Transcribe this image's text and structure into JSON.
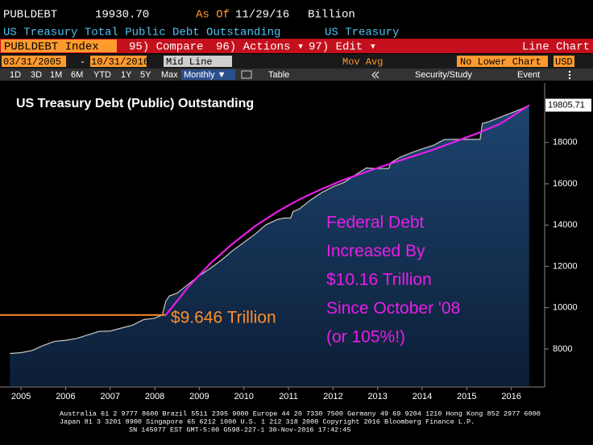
{
  "header": {
    "symbol": "PUBLDEBT",
    "value": "19930.70",
    "as_of_label": "As Of",
    "date": "11/29/16",
    "unit": "Billion",
    "description": "US Treasury Total Public Debt Outstanding",
    "source": "US Treasury"
  },
  "menu": {
    "ticker": "PUBLDEBT Index",
    "compare": "95) Compare",
    "actions": "96) Actions ▾",
    "edit": "97) Edit ▾",
    "chart_type": "Line Chart"
  },
  "controls": {
    "start": "03/31/2005",
    "dash": "-",
    "end": "10/31/2016",
    "line_mode": "Mid Line",
    "mov_avg": "Mov Avg",
    "lower": "No Lower Chart",
    "currency": "USD"
  },
  "toolbar": {
    "ranges": [
      "1D",
      "3D",
      "1M",
      "6M",
      "YTD",
      "1Y",
      "5Y",
      "Max"
    ],
    "period": "Monthly ▼",
    "table": "Table",
    "study": "Security/Study",
    "event": "Event"
  },
  "chart_data": {
    "type": "area",
    "title": "US Treasury Debt (Public) Outstanding",
    "x": [
      2005.25,
      2005.5,
      2005.75,
      2006.0,
      2006.25,
      2006.5,
      2006.75,
      2007.0,
      2007.25,
      2007.5,
      2007.75,
      2008.0,
      2008.25,
      2008.5,
      2008.67,
      2008.75,
      2008.83,
      2009.0,
      2009.25,
      2009.5,
      2009.75,
      2010.0,
      2010.25,
      2010.5,
      2010.75,
      2011.0,
      2011.25,
      2011.4,
      2011.55,
      2011.6,
      2011.75,
      2012.0,
      2012.25,
      2012.5,
      2012.75,
      2013.0,
      2013.25,
      2013.4,
      2013.75,
      2013.8,
      2014.0,
      2014.25,
      2014.5,
      2014.75,
      2015.0,
      2015.2,
      2015.5,
      2015.8,
      2015.85,
      2016.0,
      2016.25,
      2016.5,
      2016.75,
      2016.9
    ],
    "values": [
      7780,
      7820,
      7930,
      8170,
      8370,
      8420,
      8510,
      8680,
      8850,
      8870,
      9010,
      9150,
      9420,
      9490,
      9650,
      10320,
      10570,
      10700,
      11130,
      11550,
      11910,
      12310,
      12770,
      13160,
      13560,
      14020,
      14270,
      14340,
      14340,
      14650,
      14790,
      15220,
      15580,
      15860,
      16070,
      16430,
      16770,
      16740,
      16740,
      17020,
      17280,
      17500,
      17690,
      17860,
      18140,
      18150,
      18150,
      18150,
      18920,
      19010,
      19220,
      19430,
      19640,
      19805.71
    ],
    "color": "#c8c8c8",
    "trend": {
      "x": [
        2008.75,
        2009.25,
        2009.75,
        2010.25,
        2010.75,
        2011.25,
        2011.75,
        2012.25,
        2012.75,
        2013.25,
        2013.75,
        2014.25,
        2014.75,
        2015.25,
        2015.75,
        2016.25,
        2016.9
      ],
      "values": [
        9646,
        11000,
        12150,
        13100,
        13950,
        14650,
        15250,
        15750,
        16200,
        16580,
        16950,
        17300,
        17650,
        18050,
        18450,
        18900,
        19800
      ],
      "color": "#e81ee8"
    },
    "start_annotation": {
      "label": "$9.646 Trillion",
      "value": 9646,
      "x": 2008.75,
      "color": "#ff8c2a"
    },
    "annotation_lines": [
      "Federal Debt",
      "Increased By",
      "$10.16 Trillion",
      "Since October '08",
      "(or 105%!)"
    ],
    "xlim": [
      2005.1,
      2016.95
    ],
    "xticks": [
      {
        "value": 2005.5,
        "label": "2005"
      },
      {
        "value": 2006.5,
        "label": "2006"
      },
      {
        "value": 2007.5,
        "label": "2007"
      },
      {
        "value": 2008.5,
        "label": "2008"
      },
      {
        "value": 2009.5,
        "label": "2009"
      },
      {
        "value": 2010.5,
        "label": "2010"
      },
      {
        "value": 2011.5,
        "label": "2011"
      },
      {
        "value": 2012.5,
        "label": "2012"
      },
      {
        "value": 2013.5,
        "label": "2013"
      },
      {
        "value": 2014.5,
        "label": "2014"
      },
      {
        "value": 2015.5,
        "label": "2015"
      },
      {
        "value": 2016.5,
        "label": "2016"
      }
    ],
    "ylim": [
      6200,
      20800
    ],
    "yticks": [
      8000,
      10000,
      12000,
      14000,
      16000,
      18000
    ],
    "grid": false
  },
  "footer": [
    "Australia 61 2 9777 8600 Brazil 5511 2395 9000 Europe 44 20 7330 7500 Germany 49 69 9204 1210 Hong Kong 852 2977 6000",
    "Japan 81 3 3201 8900        Singapore 65 6212 1000        U.S. 1 212 318 2000        Copyright 2016 Bloomberg Finance L.P.",
    "SN 145077 EST  GMT-5:00 G598-227-1 30-Nov-2016 17:42:45"
  ]
}
